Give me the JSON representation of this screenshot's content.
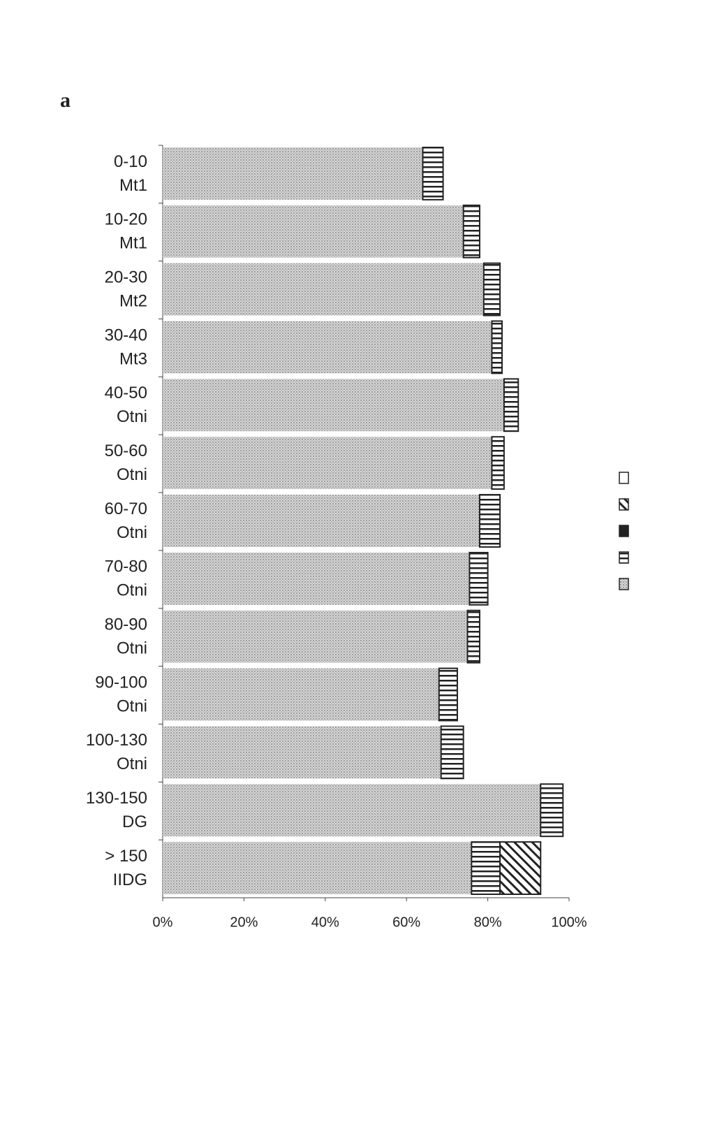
{
  "panel_label": "a",
  "chart_data": {
    "type": "stacked-barh",
    "categories": [
      [
        "0-10",
        "Mt1"
      ],
      [
        "10-20",
        "Mt1"
      ],
      [
        "20-30",
        "Mt2"
      ],
      [
        "30-40",
        "Mt3"
      ],
      [
        "40-50",
        "Otni"
      ],
      [
        "50-60",
        "Otni"
      ],
      [
        "60-70",
        "Otni"
      ],
      [
        "70-80",
        "Otni"
      ],
      [
        "80-90",
        "Otni"
      ],
      [
        "90-100",
        "Otni"
      ],
      [
        "100-130",
        "Otni"
      ],
      [
        "130-150",
        "DG"
      ],
      [
        "> 150",
        "IIDG"
      ]
    ],
    "series": [
      {
        "pattern": "dots",
        "color": "#b8b8b8",
        "values": [
          64,
          74,
          79,
          81,
          84,
          81,
          78,
          75.5,
          75,
          68,
          68.5,
          93,
          76
        ]
      },
      {
        "pattern": "hlines",
        "color": "#222222",
        "values": [
          5,
          4,
          4,
          2.5,
          3.5,
          3,
          5,
          4.5,
          3,
          4.5,
          5.5,
          5.5,
          7
        ]
      },
      {
        "pattern": "solid",
        "color": "#222222",
        "values": [
          null,
          null,
          null,
          null,
          null,
          null,
          null,
          null,
          null,
          null,
          null,
          null,
          null
        ]
      },
      {
        "pattern": "diag",
        "color": "#222222",
        "values": [
          null,
          null,
          null,
          null,
          null,
          null,
          null,
          null,
          null,
          null,
          null,
          null,
          10
        ]
      },
      {
        "pattern": "empty",
        "color": "#222222",
        "values": [
          null,
          null,
          null,
          null,
          null,
          null,
          null,
          null,
          null,
          null,
          null,
          null,
          null
        ]
      }
    ],
    "xlim": [
      0,
      100
    ],
    "xticks": [
      {
        "value": 0,
        "label": "0%"
      },
      {
        "value": 20,
        "label": "20%"
      },
      {
        "value": 40,
        "label": "40%"
      },
      {
        "value": 60,
        "label": "60%"
      },
      {
        "value": 80,
        "label": "80%"
      },
      {
        "value": 100,
        "label": "100%"
      }
    ],
    "legend": "right"
  }
}
